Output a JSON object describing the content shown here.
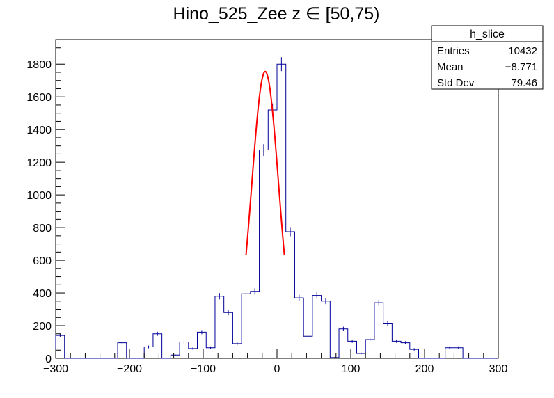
{
  "chart_data": {
    "type": "bar",
    "title": "Hino_525_Zee z  ∈ [50,75)",
    "xlabel": "",
    "ylabel": "",
    "xlim": [
      -300,
      300
    ],
    "ylim": [
      0,
      1950
    ],
    "bin_width": 12,
    "x_ticks": [
      -300,
      -200,
      -100,
      0,
      100,
      200,
      300
    ],
    "x_tick_labels": [
      "−300",
      "−200",
      "−100",
      "0",
      "100",
      "200",
      "300"
    ],
    "y_ticks": [
      0,
      200,
      400,
      600,
      800,
      1000,
      1200,
      1400,
      1600,
      1800
    ],
    "y_tick_labels": [
      "0",
      "200",
      "400",
      "600",
      "800",
      "1000",
      "1200",
      "1400",
      "1600",
      "1800"
    ],
    "grid": false,
    "histogram": {
      "name": "h_slice",
      "color": "#000099",
      "bin_edges": [
        -300,
        -288,
        -276,
        -264,
        -252,
        -240,
        -228,
        -216,
        -204,
        -192,
        -180,
        -168,
        -156,
        -144,
        -132,
        -120,
        -108,
        -96,
        -84,
        -72,
        -60,
        -48,
        -36,
        -24,
        -12,
        0,
        12,
        24,
        36,
        48,
        60,
        72,
        84,
        96,
        108,
        120,
        132,
        144,
        156,
        168,
        180,
        192,
        204,
        216,
        228,
        240,
        252,
        264,
        276,
        288,
        300
      ],
      "values": [
        140,
        0,
        0,
        0,
        0,
        0,
        0,
        95,
        0,
        0,
        70,
        150,
        0,
        20,
        100,
        60,
        160,
        65,
        380,
        280,
        90,
        395,
        410,
        1275,
        1520,
        1800,
        775,
        370,
        135,
        385,
        350,
        5,
        180,
        105,
        30,
        115,
        340,
        215,
        105,
        95,
        55,
        0,
        0,
        0,
        65,
        65,
        0,
        0,
        0,
        0
      ]
    },
    "fit": {
      "type": "gaussian",
      "color": "#ff0000",
      "amplitude": 1755,
      "mean": -16,
      "sigma": 18.2,
      "x_range": [
        -42,
        10
      ]
    },
    "legend_position": "top-right",
    "stats_box": {
      "title": "h_slice",
      "rows": [
        {
          "label": "Entries",
          "value": "10432"
        },
        {
          "label": "Mean",
          "value": "−8.771"
        },
        {
          "label": "Std Dev",
          "value": "79.46"
        }
      ]
    }
  }
}
